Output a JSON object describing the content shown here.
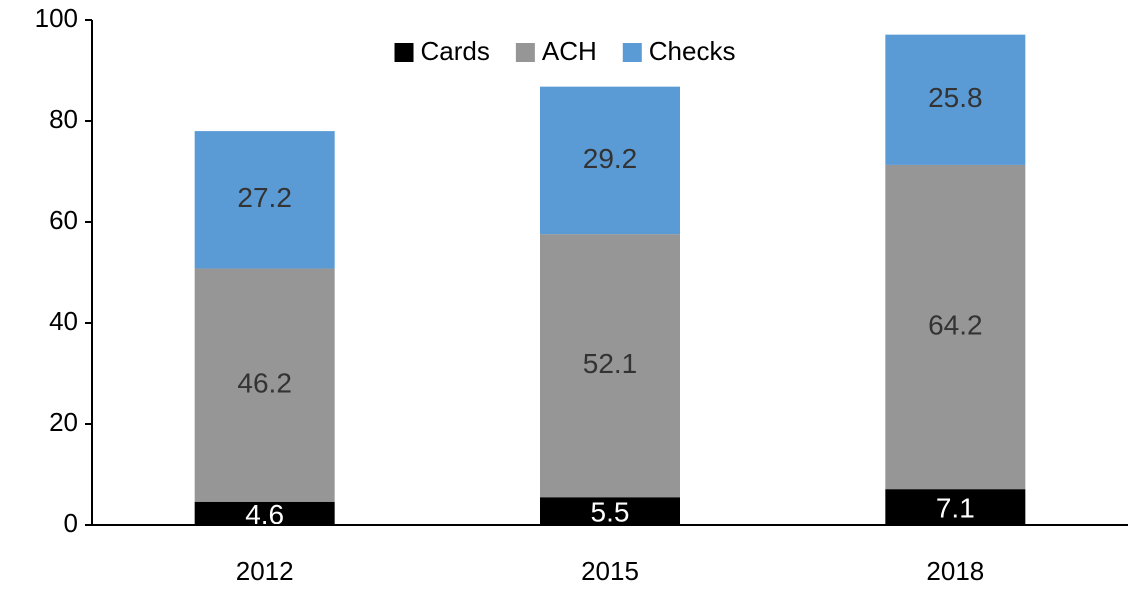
{
  "chart_data": {
    "type": "stacked-bar",
    "categories": [
      "2012",
      "2015",
      "2018"
    ],
    "series": [
      {
        "name": "Cards",
        "color": "#000000",
        "values": [
          4.6,
          5.5,
          7.1
        ]
      },
      {
        "name": "ACH",
        "color": "#969696",
        "values": [
          46.2,
          52.1,
          64.2
        ]
      },
      {
        "name": "Checks",
        "color": "#5b9bd5",
        "values": [
          27.2,
          29.2,
          25.8
        ]
      }
    ],
    "ylim": [
      0,
      100
    ],
    "yticks": [
      0,
      20,
      40,
      60,
      80,
      100
    ],
    "grid": false,
    "legend": "top"
  }
}
